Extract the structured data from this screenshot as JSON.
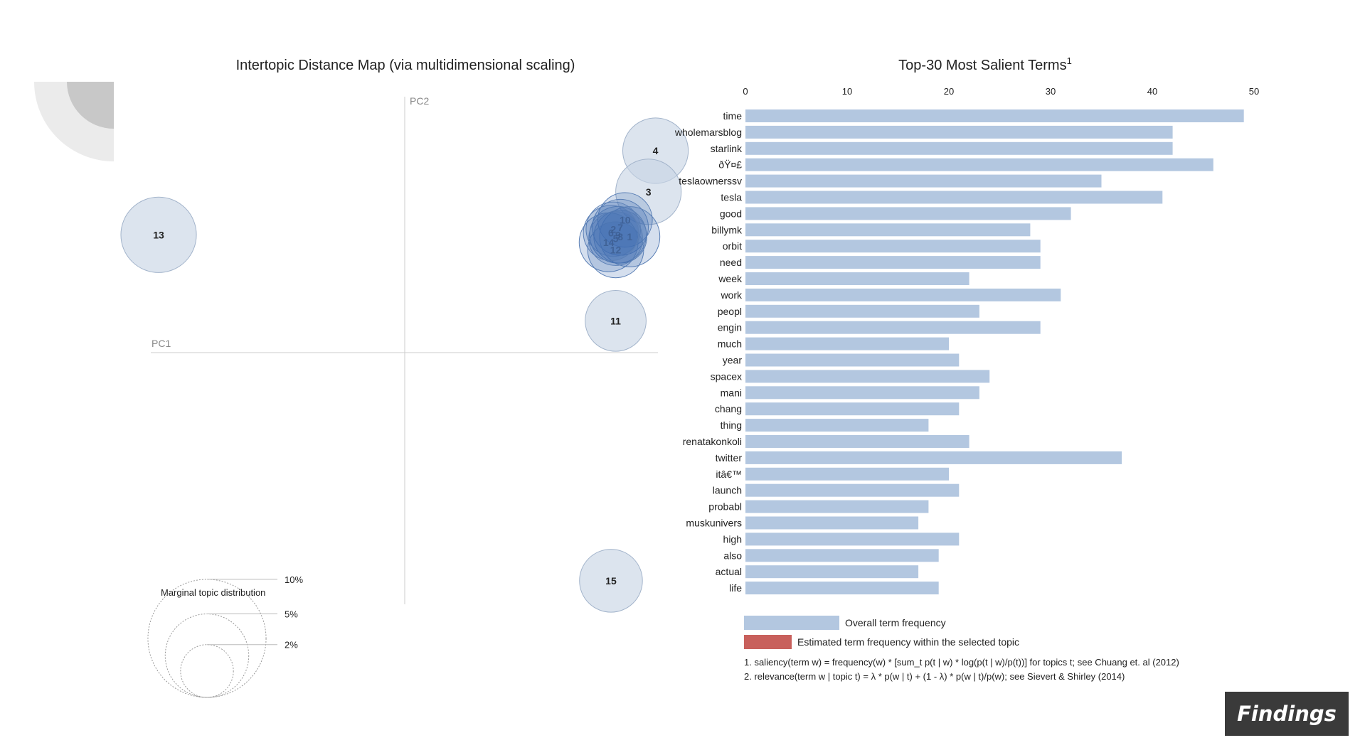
{
  "slide_badge": "Findings",
  "colors": {
    "bar": "#b3c7e0",
    "bar_topic": "#c8605c",
    "bubble_fill": "#c6d3e3",
    "bubble_dense": "#3f6db0",
    "axis": "#cccccc"
  },
  "chart_data": [
    {
      "type": "scatter",
      "title": "Intertopic Distance Map (via multidimensional scaling)",
      "xlabel": "PC1",
      "ylabel": "PC2",
      "points": [
        {
          "label": "4",
          "x": 0.107,
          "y": 0.108,
          "share": 5.2
        },
        {
          "label": "3",
          "x": 0.104,
          "y": 0.086,
          "share": 5.2
        },
        {
          "label": "13",
          "x": -0.105,
          "y": 0.063,
          "share": 6.9
        },
        {
          "label": "10",
          "x": 0.094,
          "y": 0.071,
          "share": 3.6
        },
        {
          "label": "7",
          "x": 0.092,
          "y": 0.067,
          "share": 3.8
        },
        {
          "label": "1",
          "x": 0.096,
          "y": 0.062,
          "share": 4.4
        },
        {
          "label": "9",
          "x": 0.091,
          "y": 0.063,
          "share": 3.9
        },
        {
          "label": "8",
          "x": 0.092,
          "y": 0.062,
          "share": 3.4
        },
        {
          "label": "14",
          "x": 0.087,
          "y": 0.059,
          "share": 4.2
        },
        {
          "label": "12",
          "x": 0.09,
          "y": 0.055,
          "share": 3.8
        },
        {
          "label": "2",
          "x": 0.089,
          "y": 0.066,
          "share": 3.6
        },
        {
          "label": "5",
          "x": 0.09,
          "y": 0.061,
          "share": 3.5
        },
        {
          "label": "6",
          "x": 0.088,
          "y": 0.064,
          "share": 3.7
        },
        {
          "label": "11",
          "x": 0.09,
          "y": 0.017,
          "share": 4.5
        },
        {
          "label": "15",
          "x": 0.088,
          "y": -0.122,
          "share": 4.8
        }
      ],
      "xlim": [
        -0.13,
        0.13
      ],
      "ylim": [
        -0.135,
        0.135
      ],
      "legend": {
        "title": "Marginal topic distribution",
        "levels": [
          {
            "label": "2%",
            "value": 2
          },
          {
            "label": "5%",
            "value": 5
          },
          {
            "label": "10%",
            "value": 10
          }
        ]
      }
    },
    {
      "type": "bar",
      "orientation": "horizontal",
      "title": "Top-30 Most Salient Terms",
      "title_sup": "1",
      "categories": [
        "time",
        "wholemarsblog",
        "starlink",
        "ðŸ¤£",
        "teslaownerssv",
        "tesla",
        "good",
        "billymk",
        "orbit",
        "need",
        "week",
        "work",
        "peopl",
        "engin",
        "much",
        "year",
        "spacex",
        "mani",
        "chang",
        "thing",
        "renatakonkoli",
        "twitter",
        "itâ€™",
        "launch",
        "probabl",
        "muskunivers",
        "high",
        "also",
        "actual",
        "life"
      ],
      "series": [
        {
          "name": "Overall term frequency",
          "values": [
            49,
            42,
            42,
            46,
            35,
            41,
            32,
            28,
            29,
            29,
            22,
            31,
            23,
            29,
            20,
            21,
            24,
            23,
            21,
            18,
            22,
            37,
            20,
            21,
            18,
            17,
            21,
            19,
            17,
            19
          ]
        }
      ],
      "xticks": [
        0,
        10,
        20,
        30,
        40,
        50
      ],
      "xlim": [
        0,
        50
      ],
      "legend": [
        {
          "label": "Overall term frequency"
        },
        {
          "label": "Estimated term frequency within the selected topic"
        }
      ],
      "footnotes": [
        "1. saliency(term w) = frequency(w) * [sum_t p(t | w) * log(p(t | w)/p(t))] for topics t; see Chuang et. al (2012)",
        "2. relevance(term w | topic t) = λ * p(w | t) + (1 - λ) * p(w | t)/p(w); see Sievert & Shirley (2014)"
      ]
    }
  ]
}
